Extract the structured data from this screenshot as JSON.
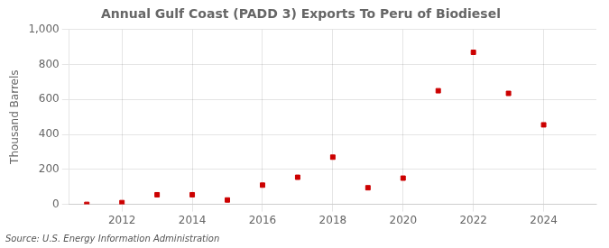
{
  "chart_data": {
    "type": "scatter",
    "title": "Annual Gulf Coast (PADD 3) Exports To Peru of Biodiesel",
    "ylabel": "Thousand Barrels",
    "annotation": "Source: U.S. Energy Information Administration",
    "x": [
      2011,
      2012,
      2013,
      2014,
      2015,
      2016,
      2017,
      2018,
      2019,
      2020,
      2021,
      2022,
      2023,
      2024
    ],
    "values": [
      0,
      10,
      55,
      55,
      25,
      110,
      155,
      270,
      95,
      150,
      650,
      870,
      635,
      455
    ],
    "color": "#cc0000",
    "marker": "square",
    "xlim": [
      2010.5,
      2025.5
    ],
    "xticks": [
      2012,
      2014,
      2016,
      2018,
      2020,
      2022,
      2024
    ],
    "ylim": [
      0,
      1000
    ],
    "yticks": [
      0,
      200,
      400,
      600,
      800,
      {
        "value": 1000,
        "label": "1,000"
      }
    ],
    "grid": true
  }
}
